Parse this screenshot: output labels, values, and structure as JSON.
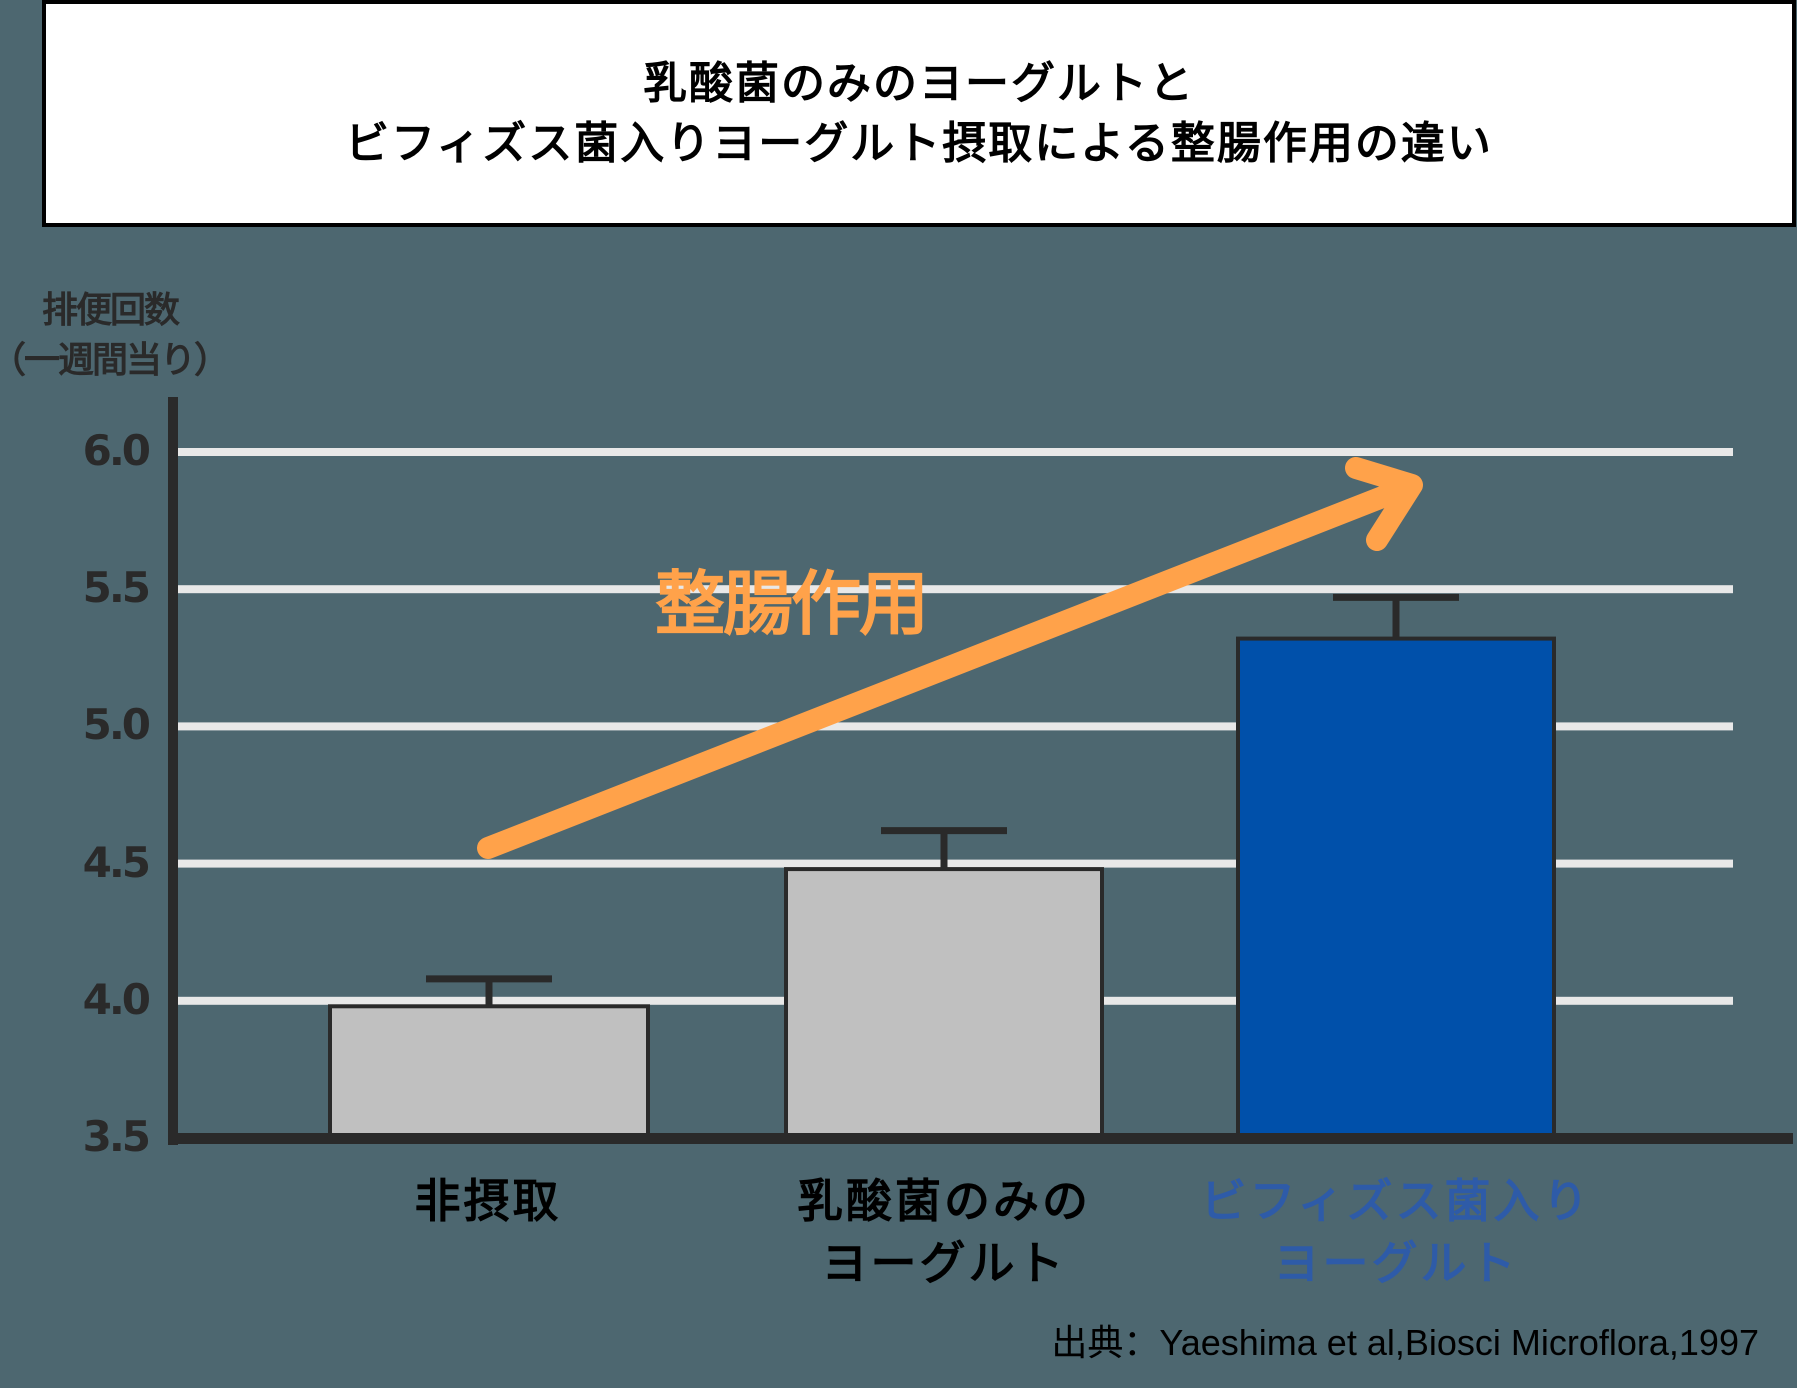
{
  "title": {
    "line1": "乳酸菌のみのヨーグルトと",
    "line2": "ビフィズス菌入りヨーグルト摂取による整腸作用の違い"
  },
  "colors": {
    "background": "#4d6770",
    "gridline": "#e8e8e8",
    "axis": "#2a2a2a",
    "bar_gray": "#c0c0c0",
    "bar_blue": "#0050aa",
    "label_blue": "#2e5ba8",
    "arrow_orange": "#ffa24a"
  },
  "annotation": {
    "text": "整腸作用",
    "arrow": "arrow-up-right"
  },
  "citation": "出典：Yaeshima et al,Biosci Microflora,1997",
  "chart_data": {
    "type": "bar",
    "title": "乳酸菌のみのヨーグルトとビフィズス菌入りヨーグルト摂取による整腸作用の違い",
    "xlabel": "",
    "ylabel": "排便回数（一週間当り）",
    "ylabel_lines": [
      "排便回数",
      "（一週間当り）"
    ],
    "ylim": [
      3.5,
      6.0
    ],
    "yticks": [
      "3.5",
      "4.0",
      "4.5",
      "5.0",
      "5.5",
      "6.0"
    ],
    "grid": true,
    "categories": [
      "非摂取",
      "乳酸菌のみのヨーグルト",
      "ビフィズス菌入りヨーグルト"
    ],
    "category_lines": [
      [
        "非摂取"
      ],
      [
        "乳酸菌のみの",
        "ヨーグルト"
      ],
      [
        "ビフィズス菌入り",
        "ヨーグルト"
      ]
    ],
    "values": [
      3.98,
      4.48,
      5.32
    ],
    "error_upper": [
      4.08,
      4.62,
      5.47
    ],
    "bar_colors": [
      "#c0c0c0",
      "#c0c0c0",
      "#0050aa"
    ],
    "label_colors": [
      "#000000",
      "#000000",
      "#2e5ba8"
    ],
    "annotations": [
      {
        "text": "整腸作用",
        "type": "arrow",
        "from_bar": 0,
        "to_bar": 2
      }
    ],
    "source": "Yaeshima et al, Biosci Microflora, 1997"
  }
}
